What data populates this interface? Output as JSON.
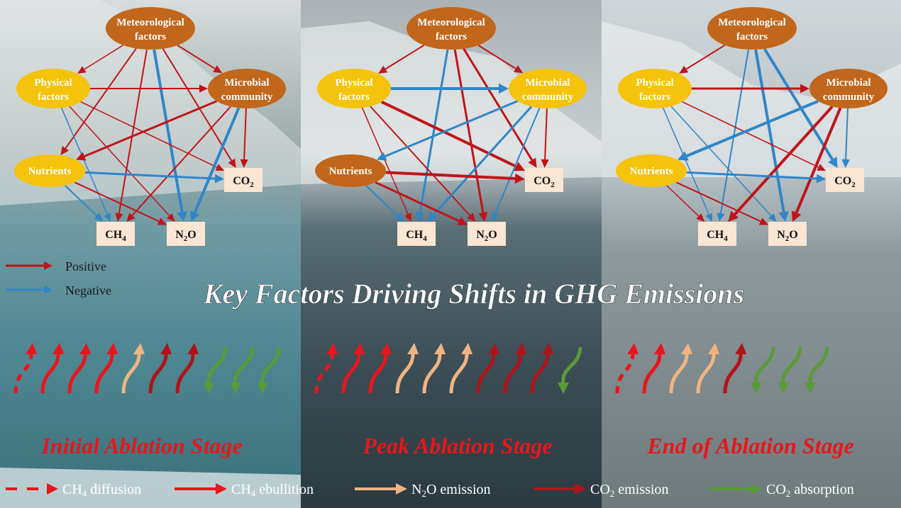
{
  "title": "Key Factors Driving Shifts in GHG Emissions",
  "legend": {
    "positive": "Positive",
    "negative": "Negative"
  },
  "colors": {
    "positive": "#c0141a",
    "negative": "#2f86c8",
    "factor_yellow": "#f5c20c",
    "factor_brown": "#c1661a",
    "gas_box": "#fbe5d3",
    "n2o_emission": "#f0b383",
    "co2_absorption": "#5a9a3a",
    "ch4_arrow": "#e8161c",
    "co2_emission": "#b0141a"
  },
  "panels": [
    {
      "stage": "Initial Ablation Stage",
      "nodes": {
        "meteorological": "Meteorological factors",
        "physical": "Physical factors",
        "microbial": "Microbial community",
        "nutrients": "Nutrients",
        "co2": "CO2",
        "ch4": "CH4",
        "n2o": "N2O"
      },
      "node_colors": {
        "meteorological": "brown",
        "physical": "yellow",
        "microbial": "brown",
        "nutrients": "yellow"
      }
    },
    {
      "stage": "Peak Ablation Stage",
      "nodes": {
        "meteorological": "Meteorological factors",
        "physical": "Physical factors",
        "microbial": "Microbial community",
        "nutrients": "Nutrients",
        "co2": "CO2",
        "ch4": "CH4",
        "n2o": "N2O"
      },
      "node_colors": {
        "meteorological": "brown",
        "physical": "yellow",
        "microbial": "yellow",
        "nutrients": "brown"
      }
    },
    {
      "stage": "End of Ablation Stage",
      "nodes": {
        "meteorological": "Meteorological factors",
        "physical": "Physical factors",
        "microbial": "Microbial community",
        "nutrients": "Nutrients",
        "co2": "CO2",
        "ch4": "CH4",
        "n2o": "N2O"
      },
      "node_colors": {
        "meteorological": "brown",
        "physical": "yellow",
        "microbial": "brown",
        "nutrients": "yellow"
      }
    }
  ],
  "bottom_legend": [
    {
      "key": "ch4_diffusion",
      "label": "CH4 diffusion"
    },
    {
      "key": "ch4_ebullition",
      "label": "CH4 ebullition"
    },
    {
      "key": "n2o_emission",
      "label": "N2O emission"
    },
    {
      "key": "co2_emission",
      "label": "CO2 emission"
    },
    {
      "key": "co2_absorption",
      "label": "CO2 absorption"
    }
  ]
}
